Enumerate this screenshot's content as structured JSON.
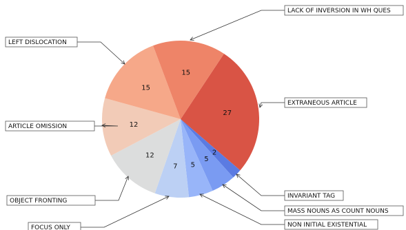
{
  "chart_data": {
    "type": "pie",
    "title": "",
    "slices": [
      {
        "label": "EXTRANEOUS ARTICLE",
        "value": 27,
        "color": "#d95445"
      },
      {
        "label": "INVARIANT TAG",
        "value": 2,
        "color": "#5b7be2"
      },
      {
        "label": "MASS NOUNS AS COUNT NOUNS",
        "value": 5,
        "color": "#7a9bf2"
      },
      {
        "label": "NON INITIAL EXISTENTIAL",
        "value": 5,
        "color": "#98b5f9"
      },
      {
        "label": "FOCUS ONLY",
        "value": 7,
        "color": "#bcd0f4"
      },
      {
        "label": "OBJECT FRONTING",
        "value": 12,
        "color": "#dcdddd"
      },
      {
        "label": "ARTICLE OMISSION",
        "value": 12,
        "color": "#f2cbb7"
      },
      {
        "label": "LEFT DISLOCATION",
        "value": 15,
        "color": "#f6a889"
      },
      {
        "label": "LACK OF INVERSION IN WH QUES",
        "value": 15,
        "color": "#ee8468"
      }
    ]
  }
}
